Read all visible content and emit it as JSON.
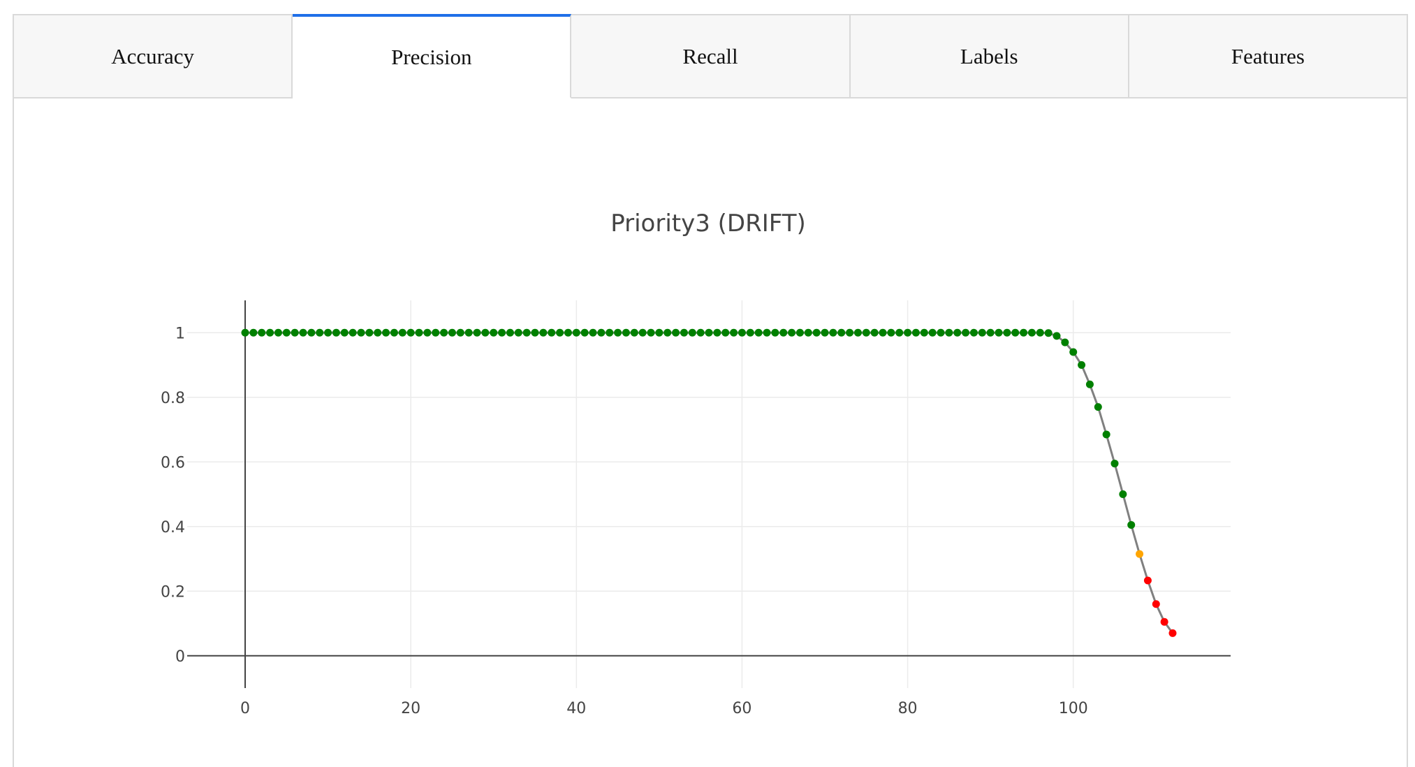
{
  "tabs": [
    {
      "label": "Accuracy",
      "active": false
    },
    {
      "label": "Precision",
      "active": true
    },
    {
      "label": "Recall",
      "active": false
    },
    {
      "label": "Labels",
      "active": false
    },
    {
      "label": "Features",
      "active": false
    }
  ],
  "colors": {
    "accent": "#1f6fe8",
    "ok": "#008000",
    "warning": "#ffa500",
    "alert": "#ff0000",
    "line": "#808080"
  },
  "chart_data": {
    "type": "line",
    "title": "Priority3 (DRIFT)",
    "xlabel": "",
    "ylabel": "",
    "xlim": [
      -7,
      119
    ],
    "ylim": [
      -0.1,
      1.1
    ],
    "xticks": [
      0,
      20,
      40,
      60,
      80,
      100
    ],
    "yticks": [
      0,
      0.2,
      0.4,
      0.6,
      0.8,
      1
    ],
    "xtick_labels": [
      "0",
      "20",
      "40",
      "60",
      "80",
      "100"
    ],
    "ytick_labels": [
      "0",
      "0.2",
      "0.4",
      "0.6",
      "0.8",
      "1"
    ],
    "grid": true,
    "legend": "none",
    "series": [
      {
        "x": [
          0,
          1,
          2,
          3,
          4,
          5,
          6,
          7,
          8,
          9,
          10,
          11,
          12,
          13,
          14,
          15,
          16,
          17,
          18,
          19,
          20,
          21,
          22,
          23,
          24,
          25,
          26,
          27,
          28,
          29,
          30,
          31,
          32,
          33,
          34,
          35,
          36,
          37,
          38,
          39,
          40,
          41,
          42,
          43,
          44,
          45,
          46,
          47,
          48,
          49,
          50,
          51,
          52,
          53,
          54,
          55,
          56,
          57,
          58,
          59,
          60,
          61,
          62,
          63,
          64,
          65,
          66,
          67,
          68,
          69,
          70,
          71,
          72,
          73,
          74,
          75,
          76,
          77,
          78,
          79,
          80,
          81,
          82,
          83,
          84,
          85,
          86,
          87,
          88,
          89,
          90,
          91,
          92,
          93,
          94,
          95,
          96,
          97,
          98,
          99,
          100,
          101,
          102,
          103,
          104,
          105,
          106,
          107,
          108,
          109,
          110,
          111,
          112
        ],
        "y": [
          1,
          1,
          1,
          1,
          1,
          1,
          1,
          1,
          1,
          1,
          1,
          1,
          1,
          1,
          1,
          1,
          1,
          1,
          1,
          1,
          1,
          1,
          1,
          1,
          1,
          1,
          1,
          1,
          1,
          1,
          1,
          1,
          1,
          1,
          1,
          1,
          1,
          1,
          1,
          1,
          1,
          1,
          1,
          1,
          1,
          1,
          1,
          1,
          1,
          1,
          1,
          1,
          1,
          1,
          1,
          1,
          1,
          1,
          1,
          1,
          1,
          1,
          1,
          1,
          1,
          1,
          1,
          1,
          1,
          1,
          1,
          1,
          1,
          1,
          1,
          1,
          1,
          1,
          1,
          1,
          1,
          1,
          1,
          1,
          1,
          1,
          1,
          1,
          1,
          1,
          1,
          1,
          1,
          1,
          1,
          1,
          1,
          0.999,
          0.99,
          0.97,
          0.94,
          0.9,
          0.84,
          0.77,
          0.685,
          0.595,
          0.5,
          0.405,
          0.315,
          0.233,
          0.16,
          0.105,
          0.07
        ],
        "point_status": [
          "ok",
          "ok",
          "ok",
          "ok",
          "ok",
          "ok",
          "ok",
          "ok",
          "ok",
          "ok",
          "ok",
          "ok",
          "ok",
          "ok",
          "ok",
          "ok",
          "ok",
          "ok",
          "ok",
          "ok",
          "ok",
          "ok",
          "ok",
          "ok",
          "ok",
          "ok",
          "ok",
          "ok",
          "ok",
          "ok",
          "ok",
          "ok",
          "ok",
          "ok",
          "ok",
          "ok",
          "ok",
          "ok",
          "ok",
          "ok",
          "ok",
          "ok",
          "ok",
          "ok",
          "ok",
          "ok",
          "ok",
          "ok",
          "ok",
          "ok",
          "ok",
          "ok",
          "ok",
          "ok",
          "ok",
          "ok",
          "ok",
          "ok",
          "ok",
          "ok",
          "ok",
          "ok",
          "ok",
          "ok",
          "ok",
          "ok",
          "ok",
          "ok",
          "ok",
          "ok",
          "ok",
          "ok",
          "ok",
          "ok",
          "ok",
          "ok",
          "ok",
          "ok",
          "ok",
          "ok",
          "ok",
          "ok",
          "ok",
          "ok",
          "ok",
          "ok",
          "ok",
          "ok",
          "ok",
          "ok",
          "ok",
          "ok",
          "ok",
          "ok",
          "ok",
          "ok",
          "ok",
          "ok",
          "ok",
          "ok",
          "ok",
          "ok",
          "ok",
          "ok",
          "ok",
          "ok",
          "ok",
          "ok",
          "warning",
          "alert",
          "alert",
          "alert",
          "alert"
        ]
      }
    ]
  }
}
